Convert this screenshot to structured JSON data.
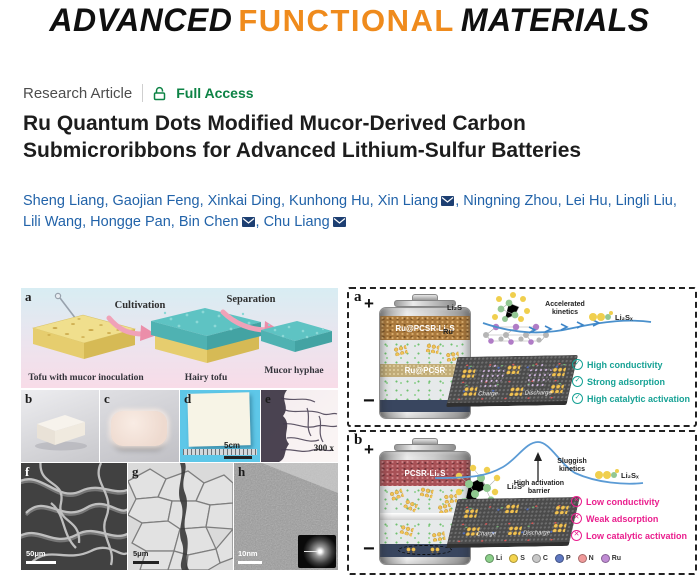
{
  "logo": {
    "advanced": "ADVANCED",
    "functional": "FUNCTIONAL",
    "materials": "MATERIALS"
  },
  "meta": {
    "type": "Research Article",
    "access_label": "Full Access"
  },
  "title": "Ru Quantum Dots Modified Mucor-Derived Carbon Submicroribbons for Advanced Lithium-Sulfur Batteries",
  "authors": [
    {
      "name": "Sheng Liang",
      "email": false
    },
    {
      "name": "Gaojian Feng",
      "email": false
    },
    {
      "name": "Xinkai Ding",
      "email": false
    },
    {
      "name": "Kunhong Hu",
      "email": false
    },
    {
      "name": "Xin Liang",
      "email": true
    },
    {
      "name": "Ningning Zhou",
      "email": false
    },
    {
      "name": "Lei Hu",
      "email": false
    },
    {
      "name": "Lingli Liu",
      "email": false
    },
    {
      "name": "Lili Wang",
      "email": false
    },
    {
      "name": "Hongge Pan",
      "email": false
    },
    {
      "name": "Bin Chen",
      "email": true
    },
    {
      "name": "Chu Liang",
      "email": true
    }
  ],
  "fig_left": {
    "a": {
      "label": "a",
      "step1": "Cultivation",
      "step2": "Separation",
      "caption1": "Tofu with mucor inoculation",
      "caption2": "Hairy tofu",
      "caption3": "Mucor hyphae"
    },
    "b": {
      "label": "b"
    },
    "c": {
      "label": "c"
    },
    "d": {
      "label": "d",
      "scalebar": "5cm"
    },
    "e": {
      "label": "e",
      "magnification": "300 x"
    },
    "f": {
      "label": "f",
      "scalebar": "50μm"
    },
    "g": {
      "label": "g",
      "scalebar": "5μm"
    },
    "h": {
      "label": "h",
      "scalebar": "10nm"
    }
  },
  "fig_right": {
    "a": {
      "label": "a",
      "plus": "+",
      "minus": "−",
      "cathode_top": "Ru@PCSR-Li₂S",
      "interlayer": "Ru@PCSR",
      "mol_top": "Li₂S",
      "mol_side": "Ru",
      "kinetics": "Accelerated kinetics",
      "product": "Li₂Sₓ",
      "sheet_left": "Charge",
      "sheet_right": "Discharge",
      "points": [
        "High conductivity",
        "Strong adsorption",
        "High catalytic activation"
      ]
    },
    "b": {
      "label": "b",
      "plus": "+",
      "minus": "−",
      "cathode_top": "PCSR-Li₂S",
      "mol": "Li₂S",
      "barrier": "High activation barrier",
      "kinetics": "Sluggish kinetics",
      "product": "Li₂Sₓ",
      "sheet_left": "Charge",
      "sheet_right": "Discharge",
      "points": [
        "Low conductivity",
        "Weak adsorption",
        "Low catalytic activation"
      ]
    },
    "legend": [
      {
        "label": "Li",
        "color": "#8ccf8a"
      },
      {
        "label": "S",
        "color": "#f4d44e"
      },
      {
        "label": "C",
        "color": "#c8c8c8"
      },
      {
        "label": "P",
        "color": "#5f78c1"
      },
      {
        "label": "N",
        "color": "#f09a9a"
      },
      {
        "label": "Ru",
        "color": "#c08cd4"
      }
    ]
  },
  "colors": {
    "logo_orange": "#ef8b1d",
    "access_green": "#0d8345",
    "author_blue": "#2263a9",
    "check_teal": "#17a295",
    "cross_pink": "#ea1f8e"
  }
}
